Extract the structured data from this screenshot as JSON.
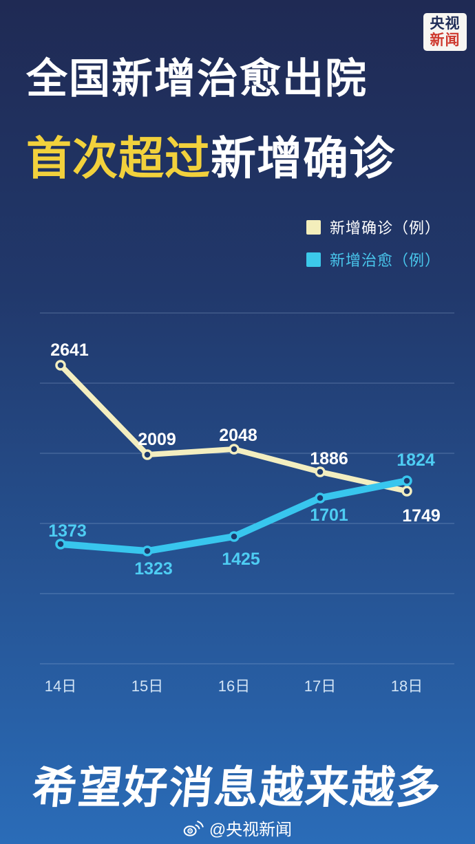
{
  "logo": {
    "line1": "央视",
    "line2": "新闻"
  },
  "title": {
    "line1": "全国新增治愈出院",
    "line2_highlight": "首次超过",
    "line2_rest": "新增确诊"
  },
  "legend": [
    {
      "label": "新增确诊（例）",
      "swatch_color": "#f3eebb",
      "text_color": "#ffffff"
    },
    {
      "label": "新增治愈（例）",
      "swatch_color": "#3cc9ea",
      "text_color": "#49c6ec"
    }
  ],
  "chart_data": {
    "type": "line",
    "title": "全国新增治愈出院首次超过新增确诊",
    "categories": [
      "14日",
      "15日",
      "16日",
      "17日",
      "18日"
    ],
    "series": [
      {
        "name": "新增确诊（例）",
        "values": [
          2641,
          2009,
          2048,
          1886,
          1749
        ],
        "color": "#f3eec0",
        "label_color": "#ffffff"
      },
      {
        "name": "新增治愈（例）",
        "values": [
          1373,
          1323,
          1425,
          1701,
          1824
        ],
        "color": "#38c6ee",
        "label_color": "#4ecdf3"
      }
    ],
    "xlabel": "",
    "ylabel": "",
    "ylim": [
      500,
      3100
    ],
    "grid": true,
    "gridline_count": 6,
    "legend_position": "top-right",
    "highlighted_points": [
      {
        "series": "新增治愈（例）",
        "category": "18日",
        "value": 1824
      },
      {
        "series": "新增确诊（例）",
        "category": "18日",
        "value": 1749
      }
    ]
  },
  "slogan": "希望好消息越来越多",
  "footer": {
    "icon": "weibo-icon",
    "handle": "@央视新闻"
  },
  "colors": {
    "bg_top": "#1f2a54",
    "bg_bottom": "#2a6cb8",
    "title_highlight": "#f2d13c",
    "gridline": "rgba(190,212,240,0.32)",
    "x_label": "#d2e4f6",
    "marker_fill": "#1c3a6d"
  }
}
